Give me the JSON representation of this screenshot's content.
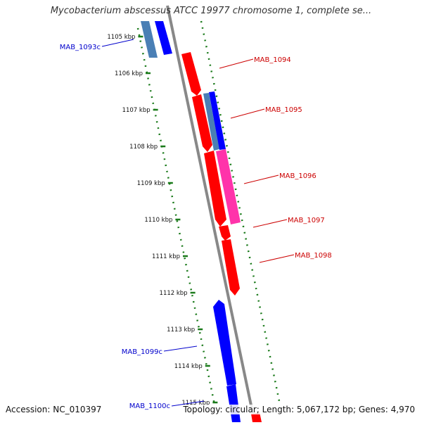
{
  "title": "Mycobacterium abscessus ATCC 19977 chromosome 1, complete se...",
  "footer": {
    "accession": "Accession: NC_010397",
    "summary": "Topology: circular; Length: 5,067,172 bp; Genes: 4,970"
  },
  "ticks": [
    "1105 kbp",
    "1106 kbp",
    "1107 kbp",
    "1108 kbp",
    "1109 kbp",
    "1110 kbp",
    "1111 kbp",
    "1112 kbp",
    "1113 kbp",
    "1114 kbp",
    "1115 kbp"
  ],
  "genes": [
    {
      "label": "MAB_1093c",
      "strand": "reverse",
      "color": "#0000ee"
    },
    {
      "label": "MAB_1094",
      "strand": "forward",
      "color": "#ff0000"
    },
    {
      "label": "MAB_1095",
      "strand": "forward",
      "color": "#ff0000"
    },
    {
      "label": "MAB_1096",
      "strand": "forward",
      "color": "#ff0000"
    },
    {
      "label": "MAB_1097",
      "strand": "forward",
      "color": "#ff0000"
    },
    {
      "label": "MAB_1098",
      "strand": "forward",
      "color": "#ff0000"
    },
    {
      "label": "MAB_1099c",
      "strand": "reverse",
      "color": "#0000ee"
    },
    {
      "label": "MAB_1100c",
      "strand": "reverse",
      "color": "#0000ee"
    }
  ],
  "colors": {
    "forward_cds": "#ff0000",
    "reverse_cds": "#0000ff",
    "backbone": "#888888",
    "gc_skew": "#ff33aa",
    "gc_content": "#4a7fb5",
    "tick_mark": "#1a7a1a",
    "forward_label": "#cc0000",
    "reverse_label": "#0000cc"
  }
}
